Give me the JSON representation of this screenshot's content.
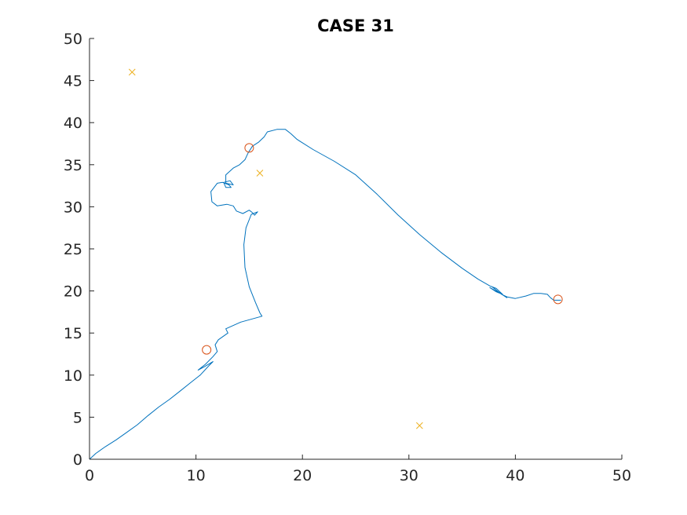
{
  "chart_data": {
    "type": "line",
    "title": "CASE 31",
    "xlabel": "",
    "ylabel": "",
    "xlim": [
      0,
      50
    ],
    "ylim": [
      0,
      50
    ],
    "xticks": [
      0,
      10,
      20,
      30,
      40,
      50
    ],
    "yticks": [
      0,
      5,
      10,
      15,
      20,
      25,
      30,
      35,
      40,
      45,
      50
    ],
    "grid": false,
    "colors": {
      "path": "#0072bd",
      "markers": "#d95319",
      "crosses": "#edb120",
      "axis": "#262626"
    },
    "series": [
      {
        "kind": "line",
        "points": [
          [
            0,
            0
          ],
          [
            0.6,
            0.7
          ],
          [
            1.5,
            1.5
          ],
          [
            2.5,
            2.3
          ],
          [
            3.5,
            3.2
          ],
          [
            4.5,
            4.1
          ],
          [
            5.5,
            5.2
          ],
          [
            6.5,
            6.2
          ],
          [
            7.5,
            7.1
          ],
          [
            8.5,
            8.1
          ],
          [
            9.5,
            9.1
          ],
          [
            10.4,
            10.0
          ],
          [
            11.2,
            11.1
          ],
          [
            11.6,
            11.6
          ],
          [
            10.8,
            11.0
          ],
          [
            10.2,
            10.6
          ],
          [
            10.9,
            11.3
          ],
          [
            11.6,
            12.2
          ],
          [
            12.0,
            12.8
          ],
          [
            11.8,
            13.6
          ],
          [
            12.1,
            14.2
          ],
          [
            13.0,
            15.0
          ],
          [
            12.8,
            15.5
          ],
          [
            14.2,
            16.3
          ],
          [
            16.2,
            17.0
          ],
          [
            16.0,
            17.4
          ],
          [
            15.6,
            18.6
          ],
          [
            15.0,
            20.5
          ],
          [
            14.6,
            22.8
          ],
          [
            14.5,
            25.5
          ],
          [
            14.7,
            27.5
          ],
          [
            15.2,
            29.1
          ],
          [
            15.8,
            29.4
          ],
          [
            15.5,
            29.0
          ],
          [
            15.3,
            29.3
          ],
          [
            15.0,
            29.6
          ],
          [
            14.4,
            29.2
          ],
          [
            13.8,
            29.5
          ],
          [
            13.5,
            30.1
          ],
          [
            12.9,
            30.3
          ],
          [
            12.0,
            30.1
          ],
          [
            11.5,
            30.6
          ],
          [
            11.4,
            31.8
          ],
          [
            12.0,
            32.8
          ],
          [
            12.5,
            32.9
          ],
          [
            13.1,
            32.6
          ],
          [
            13.3,
            32.3
          ],
          [
            12.8,
            32.3
          ],
          [
            12.6,
            32.9
          ],
          [
            13.2,
            33.1
          ],
          [
            13.5,
            32.6
          ],
          [
            12.8,
            32.8
          ],
          [
            12.8,
            33.8
          ],
          [
            13.5,
            34.6
          ],
          [
            14.1,
            35.0
          ],
          [
            14.6,
            35.6
          ],
          [
            14.9,
            36.4
          ],
          [
            15.3,
            37.2
          ],
          [
            15.9,
            37.7
          ],
          [
            16.4,
            38.3
          ],
          [
            16.7,
            38.9
          ],
          [
            17.6,
            39.2
          ],
          [
            18.4,
            39.2
          ],
          [
            18.9,
            38.7
          ],
          [
            19.5,
            38.0
          ],
          [
            21.0,
            36.8
          ],
          [
            23.0,
            35.4
          ],
          [
            25.0,
            33.8
          ],
          [
            27.0,
            31.5
          ],
          [
            29.0,
            29.0
          ],
          [
            31.0,
            26.7
          ],
          [
            33.0,
            24.6
          ],
          [
            35.0,
            22.7
          ],
          [
            36.5,
            21.4
          ],
          [
            37.6,
            20.6
          ],
          [
            38.2,
            20.3
          ],
          [
            38.8,
            19.6
          ],
          [
            38.2,
            19.9
          ],
          [
            37.6,
            20.4
          ],
          [
            38.6,
            19.7
          ],
          [
            39.2,
            19.2
          ],
          [
            38.4,
            19.9
          ],
          [
            37.8,
            20.5
          ],
          [
            38.7,
            19.6
          ],
          [
            39.2,
            19.3
          ],
          [
            40.0,
            19.1
          ],
          [
            41.0,
            19.4
          ],
          [
            41.7,
            19.7
          ],
          [
            42.4,
            19.7
          ],
          [
            43.0,
            19.6
          ],
          [
            43.3,
            19.2
          ],
          [
            43.6,
            18.9
          ],
          [
            44.3,
            18.9
          ]
        ]
      },
      {
        "kind": "circle",
        "points": [
          [
            11,
            13
          ],
          [
            15,
            37
          ],
          [
            44,
            19
          ]
        ]
      },
      {
        "kind": "cross",
        "points": [
          [
            4,
            46
          ],
          [
            16,
            34
          ],
          [
            31,
            4
          ]
        ]
      }
    ]
  }
}
